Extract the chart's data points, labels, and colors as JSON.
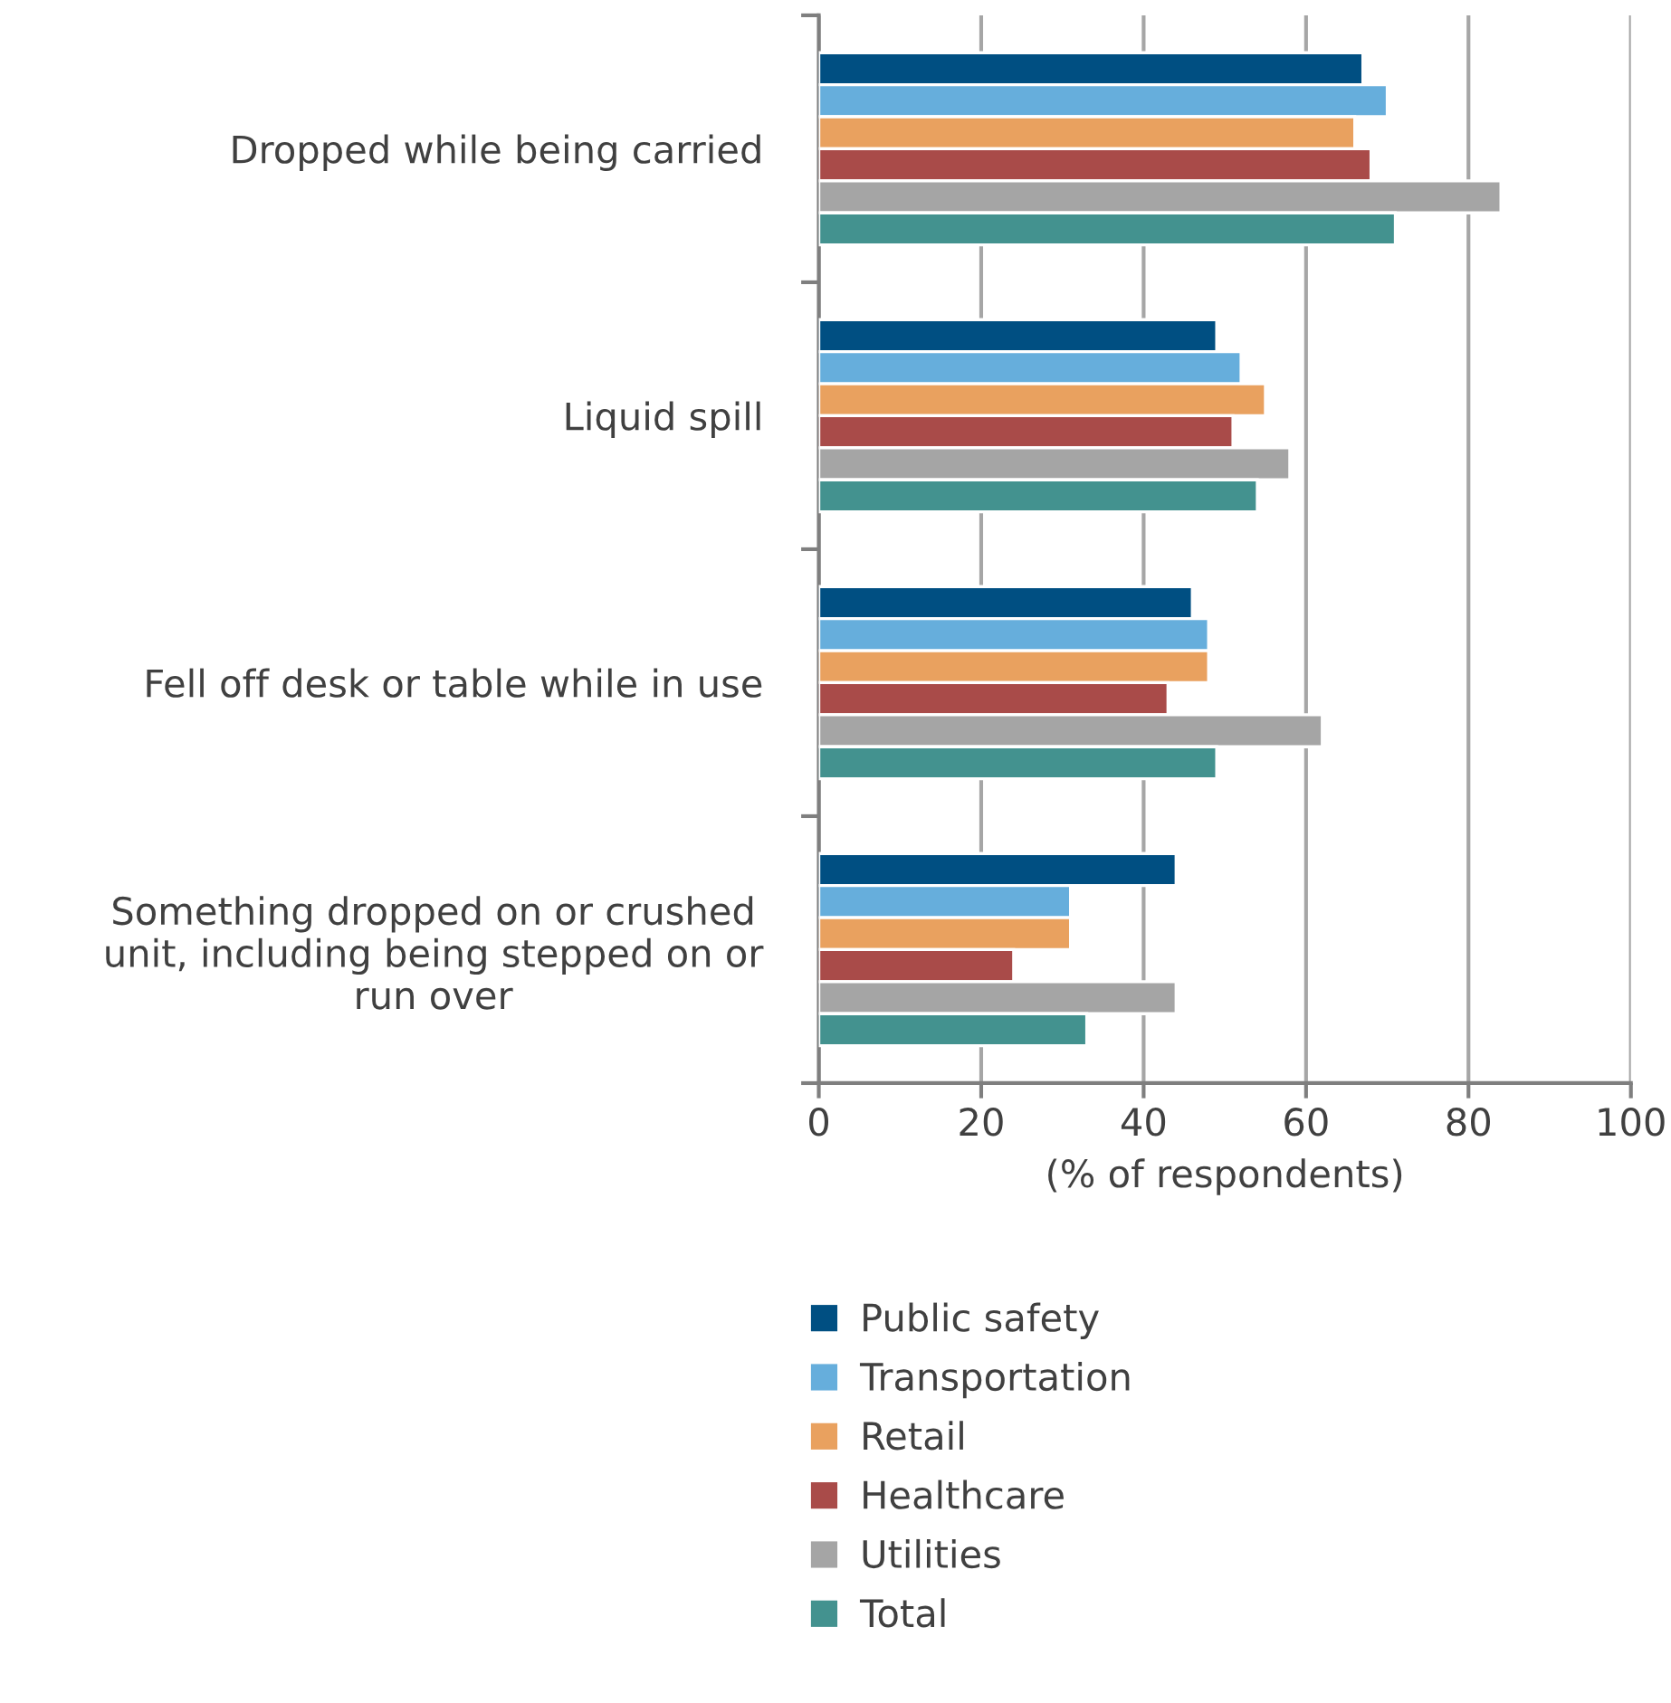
{
  "chart_data": {
    "type": "bar",
    "orientation": "horizontal",
    "categories": [
      "Dropped while being carried",
      "Liquid spill",
      "Fell off desk or table while in use",
      "Something dropped on or crushed\nunit, including being stepped on or\nrun over"
    ],
    "series": [
      {
        "name": "Public safety",
        "color": "#004f82",
        "values": [
          67,
          49,
          46,
          44
        ]
      },
      {
        "name": "Transportation",
        "color": "#66aedc",
        "values": [
          70,
          52,
          48,
          31
        ]
      },
      {
        "name": "Retail",
        "color": "#e9a15f",
        "values": [
          66,
          55,
          48,
          31
        ]
      },
      {
        "name": "Healthcare",
        "color": "#a94b49",
        "values": [
          68,
          51,
          43,
          24
        ]
      },
      {
        "name": "Utilities",
        "color": "#a5a5a5",
        "values": [
          84,
          58,
          62,
          44
        ]
      },
      {
        "name": "Total",
        "color": "#43928f",
        "values": [
          71,
          54,
          49,
          33
        ]
      }
    ],
    "xlabel": "(% of respondents)",
    "xlim": [
      0,
      100
    ],
    "xticks": [
      0,
      20,
      40,
      60,
      80,
      100
    ],
    "grid": "x",
    "legend": "bottom"
  }
}
